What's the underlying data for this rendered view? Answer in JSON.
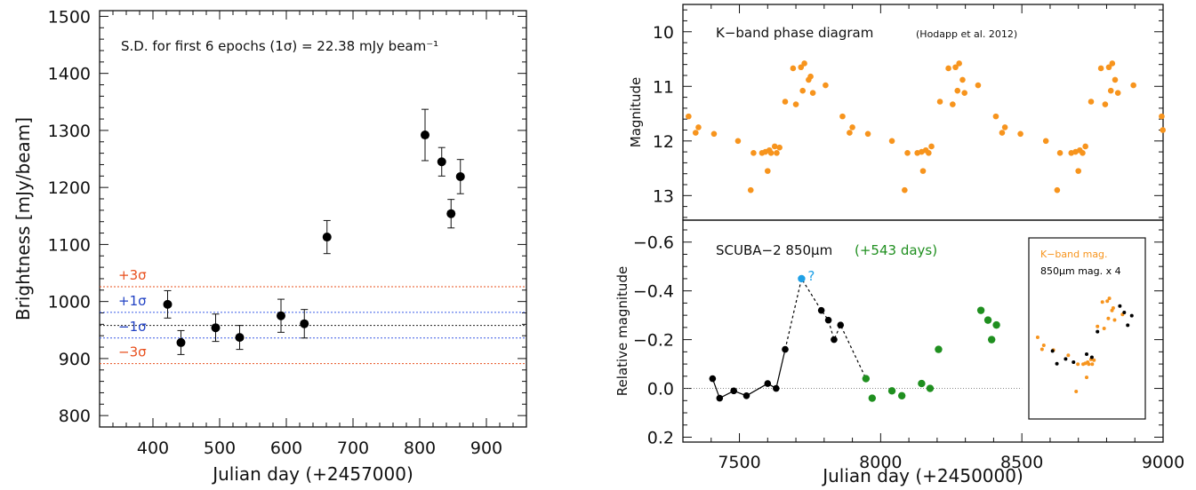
{
  "chart_data": [
    {
      "type": "scatter",
      "xlabel": "Julian day (+2457000)",
      "ylabel": "Brightness [mJy/beam]",
      "xlim": [
        320,
        960
      ],
      "ylim": [
        780,
        1510
      ],
      "xticks": [
        400,
        500,
        600,
        700,
        800,
        900
      ],
      "yticks": [
        800,
        900,
        1000,
        1100,
        1200,
        1300,
        1400,
        1500
      ],
      "annotation": "S.D. for first 6 epochs (1σ) = 22.38 mJy beam⁻¹",
      "series": [
        {
          "x": [
            422,
            442,
            494,
            530,
            592,
            627,
            661,
            808,
            833,
            847,
            861
          ],
          "y": [
            995,
            928,
            954,
            937,
            975,
            961,
            1113,
            1292,
            1245,
            1154,
            1219
          ],
          "err": [
            24,
            21,
            24,
            21,
            29,
            25,
            29,
            45,
            25,
            25,
            30
          ]
        }
      ],
      "reference_lines": [
        {
          "label": "+3σ",
          "y": 1026,
          "color": "#e8501e",
          "label_color": "#e8501e"
        },
        {
          "label": "+1σ",
          "y": 981,
          "color": "#3b5ce6",
          "label_color": "#2142c4"
        },
        {
          "label": "",
          "y": 958,
          "color": "#222222",
          "label_color": "#222222"
        },
        {
          "label": "−1σ",
          "y": 936,
          "color": "#3b5ce6",
          "label_color": "#2142c4"
        },
        {
          "label": "−3σ",
          "y": 891,
          "color": "#e8501e",
          "label_color": "#e8501e"
        }
      ]
    },
    {
      "type": "scatter",
      "ylabel": "Magnitude",
      "xlim": [
        7300,
        9000
      ],
      "ylim": [
        13.45,
        9.5
      ],
      "yticks": [
        10,
        11,
        12,
        13
      ],
      "title": "K−band phase diagram",
      "title_note": "(Hodapp et al. 2012)",
      "color": "#f7941d",
      "series": [
        {
          "x": [
            7320,
            7345,
            7355,
            7410,
            7495,
            7540,
            7550,
            7580,
            7592,
            7600,
            7606,
            7612,
            7625,
            7632,
            7642,
            7662,
            7690,
            7700,
            7718,
            7724,
            7730,
            7745,
            7752,
            7760,
            7805,
            7865,
            7890,
            7900,
            7955,
            8040,
            8085,
            8095,
            8130,
            8145,
            8150,
            8160,
            8170,
            8180,
            8210,
            8240,
            8255,
            8265,
            8272,
            8278,
            8290,
            8297,
            8345,
            8408,
            8430,
            8440,
            8495,
            8585,
            8625,
            8635,
            8675,
            8690,
            8700,
            8705,
            8715,
            8725,
            8745,
            8780,
            8795,
            8808,
            8815,
            8820,
            8830,
            8840,
            8895,
            8995,
            8999
          ],
          "y": [
            11.55,
            11.85,
            11.75,
            11.87,
            12.0,
            12.9,
            12.22,
            12.22,
            12.2,
            12.55,
            12.17,
            12.22,
            12.1,
            12.22,
            12.12,
            11.28,
            10.67,
            11.33,
            10.65,
            11.08,
            10.58,
            10.88,
            10.82,
            11.12,
            10.98,
            11.55,
            11.85,
            11.75,
            11.87,
            12.0,
            12.9,
            12.22,
            12.22,
            12.2,
            12.55,
            12.17,
            12.22,
            12.1,
            11.28,
            10.67,
            11.33,
            10.65,
            11.08,
            10.58,
            10.88,
            11.12,
            10.98,
            11.55,
            11.85,
            11.75,
            11.87,
            12.0,
            12.9,
            12.22,
            12.22,
            12.2,
            12.55,
            12.17,
            12.22,
            12.1,
            11.28,
            10.67,
            11.33,
            10.65,
            11.08,
            10.58,
            10.88,
            11.12,
            10.98,
            11.55,
            11.8
          ]
        }
      ]
    },
    {
      "type": "scatter",
      "xlabel": "Julian day (+2450000)",
      "ylabel": "Relative magnitude",
      "xlim": [
        7300,
        9000
      ],
      "ylim": [
        0.22,
        -0.69
      ],
      "xticks": [
        7500,
        8000,
        8500,
        9000
      ],
      "yticks": [
        -0.6,
        -0.4,
        -0.2,
        0.0,
        0.2
      ],
      "title": "SCUBA−2 850μm",
      "title_note": "(+543 days)",
      "title_note_color": "#1f8f1f",
      "series": [
        {
          "color": "#000000",
          "x": [
            7405,
            7430,
            7480,
            7525,
            7600,
            7630,
            7662,
            7790,
            7815,
            7835,
            7858
          ],
          "y": [
            -0.04,
            0.04,
            0.01,
            0.03,
            -0.02,
            0.0,
            -0.16,
            -0.32,
            -0.28,
            -0.2,
            -0.26
          ]
        },
        {
          "color": "#1fa0e6",
          "label": "?",
          "x": [
            7720
          ],
          "y": [
            -0.45
          ]
        },
        {
          "color": "#1f8f1f",
          "x": [
            7948,
            7970,
            8040,
            8075,
            8145,
            8175,
            8205,
            8355,
            8380,
            8393,
            8410
          ],
          "y": [
            -0.04,
            0.04,
            0.01,
            0.03,
            -0.02,
            0.0,
            -0.16,
            -0.32,
            -0.28,
            -0.2,
            -0.26
          ]
        }
      ],
      "zero_line": 0.0,
      "inset": {
        "legend": [
          "K−band mag.",
          "850μm mag. x 4"
        ],
        "legend_colors": [
          "#f7941d",
          "#000000"
        ]
      }
    }
  ]
}
